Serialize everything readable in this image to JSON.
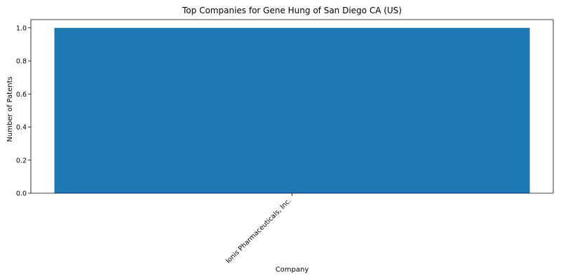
{
  "chart_data": {
    "type": "bar",
    "title": "Top Companies for Gene Hung of San Diego CA (US)",
    "xlabel": "Company",
    "ylabel": "Number of Patents",
    "categories": [
      "Ionis Pharmaceuticals, Inc."
    ],
    "values": [
      1
    ],
    "ylim": [
      0,
      1.05
    ],
    "yticks": [
      "0.0",
      "0.2",
      "0.4",
      "0.6",
      "0.8",
      "1.0"
    ],
    "bar_color": "#1f77b4",
    "grid": false,
    "legend": "none"
  }
}
